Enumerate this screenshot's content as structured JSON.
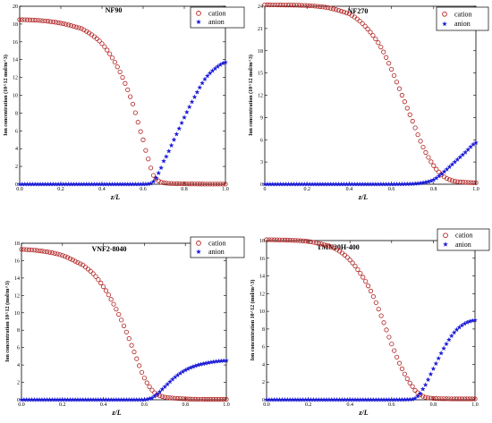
{
  "colors": {
    "cation": "#b22222",
    "anion": "#1a1ad6",
    "frame": "#000000"
  },
  "legend": {
    "cation": "cation",
    "anion": "anion"
  },
  "chart_data": [
    {
      "type": "scatter",
      "title": "NF90",
      "xlabel": "z/L",
      "ylabel": "Ion concentration (10^12 mol/m^3)",
      "xlim": [
        0,
        1
      ],
      "ylim": [
        0,
        20
      ],
      "xticks": [
        0.0,
        0.2,
        0.4,
        0.6,
        0.8,
        1.0
      ],
      "xtick_labels": [
        "0.0",
        "0.2",
        "0.4",
        "0.6",
        "0.8",
        "1.0"
      ],
      "yticks": [
        0,
        2,
        4,
        6,
        8,
        10,
        12,
        14,
        16,
        18,
        20
      ],
      "ytick_labels": [
        "0",
        "2",
        "4",
        "6",
        "8",
        "10",
        "12",
        "14",
        "16",
        "18",
        "20"
      ],
      "series": [
        {
          "name": "cation",
          "x": [
            0,
            0.1,
            0.2,
            0.3,
            0.35,
            0.4,
            0.45,
            0.5,
            0.55,
            0.6,
            0.63,
            0.65,
            0.68,
            0.72,
            0.8,
            0.9,
            1.0
          ],
          "y": [
            18.5,
            18.4,
            18.1,
            17.5,
            16.8,
            15.8,
            14.2,
            12.0,
            9.0,
            5.0,
            2.5,
            1.0,
            0.3,
            0.1,
            0.05,
            0.02,
            0.02
          ]
        },
        {
          "name": "anion",
          "x": [
            0,
            0.2,
            0.4,
            0.6,
            0.64,
            0.66,
            0.68,
            0.7,
            0.75,
            0.8,
            0.85,
            0.9,
            0.95,
            1.0
          ],
          "y": [
            0,
            0,
            0,
            0,
            0.1,
            0.6,
            1.5,
            2.6,
            5.0,
            7.5,
            9.8,
            11.8,
            13.0,
            13.7
          ]
        }
      ]
    },
    {
      "type": "scatter",
      "title": "NF270",
      "xlabel": "z/L",
      "ylabel": "Ion concentration (10^12 mol/m^3)",
      "xlim": [
        0,
        1
      ],
      "ylim": [
        0,
        24
      ],
      "xticks": [
        0.0,
        0.2,
        0.4,
        0.6,
        0.8,
        1.0
      ],
      "xtick_labels": [
        "0",
        "0.2",
        "0.4",
        "0.6",
        "0.8",
        "1.0"
      ],
      "yticks": [
        0,
        3,
        6,
        9,
        12,
        15,
        18,
        21,
        24
      ],
      "ytick_labels": [
        "0",
        "3",
        "6",
        "9",
        "12",
        "15",
        "18",
        "21",
        "24"
      ],
      "series": [
        {
          "name": "cation",
          "x": [
            0,
            0.2,
            0.3,
            0.4,
            0.45,
            0.5,
            0.55,
            0.6,
            0.65,
            0.7,
            0.75,
            0.8,
            0.85,
            0.9,
            1.0
          ],
          "y": [
            24.2,
            24.1,
            23.8,
            23.0,
            22.0,
            20.5,
            18.5,
            15.5,
            12.0,
            8.5,
            5.0,
            2.5,
            1.0,
            0.4,
            0.2
          ]
        },
        {
          "name": "anion",
          "x": [
            0,
            0.2,
            0.4,
            0.6,
            0.7,
            0.75,
            0.8,
            0.85,
            0.9,
            0.95,
            1.0
          ],
          "y": [
            0,
            0,
            0,
            0,
            0.05,
            0.2,
            0.6,
            1.7,
            3.0,
            4.3,
            5.6
          ]
        }
      ]
    },
    {
      "type": "scatter",
      "title": "VNF2-8040",
      "xlabel": "z/L",
      "ylabel": "Ion concentration 10^12 (mol/m^3)",
      "xlim": [
        0,
        1
      ],
      "ylim": [
        0,
        18
      ],
      "xticks": [
        0.0,
        0.2,
        0.4,
        0.6,
        0.8,
        1.0
      ],
      "xtick_labels": [
        "0.0",
        "0.2",
        "0.4",
        "0.6",
        "0.8",
        "1.0"
      ],
      "yticks": [
        0,
        2,
        4,
        6,
        8,
        10,
        12,
        14,
        16,
        18
      ],
      "ytick_labels": [
        "0",
        "2",
        "4",
        "6",
        "8",
        "10",
        "12",
        "14",
        "16",
        "18"
      ],
      "series": [
        {
          "name": "cation",
          "x": [
            0,
            0.1,
            0.2,
            0.3,
            0.35,
            0.4,
            0.45,
            0.5,
            0.55,
            0.6,
            0.65,
            0.7,
            0.8,
            0.9,
            1.0
          ],
          "y": [
            17.3,
            17.1,
            16.6,
            15.5,
            14.5,
            13.0,
            11.0,
            8.5,
            5.5,
            2.5,
            0.8,
            0.3,
            0.1,
            0.05,
            0.05
          ]
        },
        {
          "name": "anion",
          "x": [
            0,
            0.2,
            0.4,
            0.6,
            0.62,
            0.65,
            0.7,
            0.75,
            0.8,
            0.85,
            0.9,
            0.95,
            1.0
          ],
          "y": [
            0,
            0,
            0,
            0,
            0.1,
            0.4,
            1.5,
            2.6,
            3.4,
            3.9,
            4.2,
            4.4,
            4.5
          ]
        }
      ]
    },
    {
      "type": "scatter",
      "title": "TMN20H-400",
      "xlabel": "z/L",
      "ylabel": "Ion concentration 10^12 (mol/m^3)",
      "xlim": [
        0,
        1
      ],
      "ylim": [
        0,
        18
      ],
      "xticks": [
        0.0,
        0.2,
        0.4,
        0.6,
        0.8,
        1.0
      ],
      "xtick_labels": [
        "0.0",
        "0.2",
        "0.4",
        "0.6",
        "0.8",
        "1.0"
      ],
      "yticks": [
        0,
        2,
        4,
        6,
        8,
        10,
        12,
        14,
        16,
        18
      ],
      "ytick_labels": [
        "0",
        "2",
        "4",
        "6",
        "8",
        "10",
        "12",
        "14",
        "16",
        "18"
      ],
      "series": [
        {
          "name": "cation",
          "x": [
            0,
            0.1,
            0.2,
            0.3,
            0.35,
            0.4,
            0.45,
            0.5,
            0.55,
            0.6,
            0.65,
            0.7,
            0.73,
            0.76,
            0.8,
            0.9,
            1.0
          ],
          "y": [
            18.1,
            18.05,
            17.9,
            17.4,
            16.8,
            15.8,
            14.3,
            12.3,
            9.5,
            6.3,
            3.5,
            1.5,
            0.7,
            0.3,
            0.15,
            0.1,
            0.1
          ]
        },
        {
          "name": "anion",
          "x": [
            0,
            0.2,
            0.4,
            0.6,
            0.7,
            0.72,
            0.75,
            0.8,
            0.85,
            0.9,
            0.95,
            1.0
          ],
          "y": [
            0,
            0,
            0,
            0,
            0.05,
            0.3,
            1.2,
            3.5,
            5.8,
            7.6,
            8.6,
            9.0
          ]
        }
      ]
    }
  ]
}
